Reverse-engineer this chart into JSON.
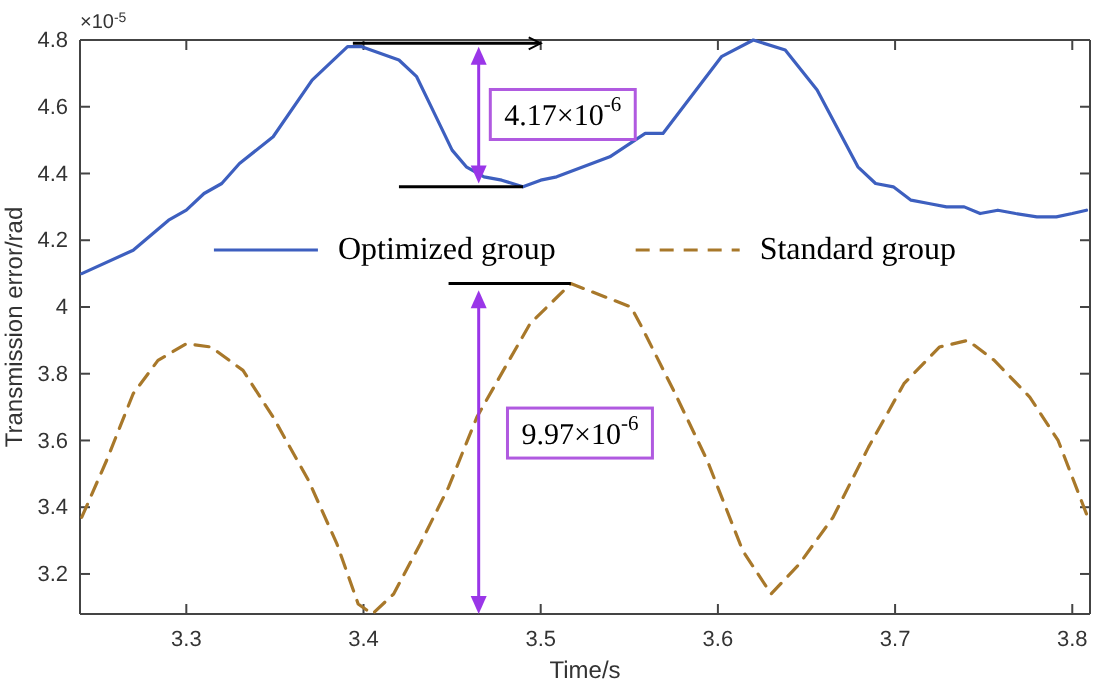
{
  "chart_data": {
    "type": "line",
    "xlabel": "Time/s",
    "ylabel": "Transmission error/rad",
    "xlim": [
      3.24,
      3.81
    ],
    "ylim": [
      3.08,
      4.8
    ],
    "xticks": [
      3.3,
      3.4,
      3.5,
      3.6,
      3.7,
      3.8
    ],
    "yticks": [
      3.2,
      3.4,
      3.6,
      3.8,
      4,
      4.2,
      4.4,
      4.6,
      4.8
    ],
    "legend": "top",
    "grid": false,
    "annotations": [
      "×10$^{-5}$",
      "4.17×10$^{-6}$",
      "9.97×10$^{-6}$"
    ],
    "series": [
      {
        "name": "Optimized group",
        "color": "#3d5fbf",
        "line_style": "solid",
        "x": [
          3.241,
          3.27,
          3.29,
          3.3,
          3.31,
          3.32,
          3.33,
          3.349,
          3.371,
          3.391,
          3.399,
          3.42,
          3.43,
          3.44,
          3.45,
          3.458,
          3.468,
          3.478,
          3.49,
          3.5,
          3.509,
          3.539,
          3.559,
          3.569,
          3.602,
          3.62,
          3.638,
          3.656,
          3.679,
          3.689,
          3.699,
          3.709,
          3.719,
          3.729,
          3.739,
          3.748,
          3.758,
          3.768,
          3.78,
          3.791,
          3.8,
          3.808
        ],
        "values": [
          4.1,
          4.17,
          4.26,
          4.29,
          4.34,
          4.37,
          4.43,
          4.51,
          4.68,
          4.78,
          4.78,
          4.74,
          4.69,
          4.58,
          4.47,
          4.42,
          4.39,
          4.38,
          4.36,
          4.38,
          4.39,
          4.45,
          4.52,
          4.52,
          4.75,
          4.8,
          4.77,
          4.65,
          4.42,
          4.37,
          4.36,
          4.32,
          4.31,
          4.3,
          4.3,
          4.28,
          4.29,
          4.28,
          4.27,
          4.27,
          4.28,
          4.29
        ]
      },
      {
        "name": "Standard group",
        "color": "#a8782a",
        "line_style": "dashed",
        "x": [
          3.241,
          3.255,
          3.27,
          3.284,
          3.3,
          3.314,
          3.332,
          3.349,
          3.369,
          3.385,
          3.397,
          3.405,
          3.417,
          3.432,
          3.448,
          3.464,
          3.48,
          3.494,
          3.517,
          3.551,
          3.557,
          3.575,
          3.594,
          3.614,
          3.63,
          3.646,
          3.665,
          3.685,
          3.705,
          3.725,
          3.741,
          3.756,
          3.776,
          3.792,
          3.808
        ],
        "values": [
          3.37,
          3.54,
          3.74,
          3.84,
          3.89,
          3.88,
          3.81,
          3.67,
          3.48,
          3.29,
          3.11,
          3.08,
          3.14,
          3.29,
          3.46,
          3.67,
          3.82,
          3.95,
          4.07,
          4,
          3.94,
          3.75,
          3.54,
          3.27,
          3.14,
          3.23,
          3.37,
          3.58,
          3.77,
          3.88,
          3.9,
          3.84,
          3.73,
          3.6,
          3.38
        ]
      }
    ]
  }
}
